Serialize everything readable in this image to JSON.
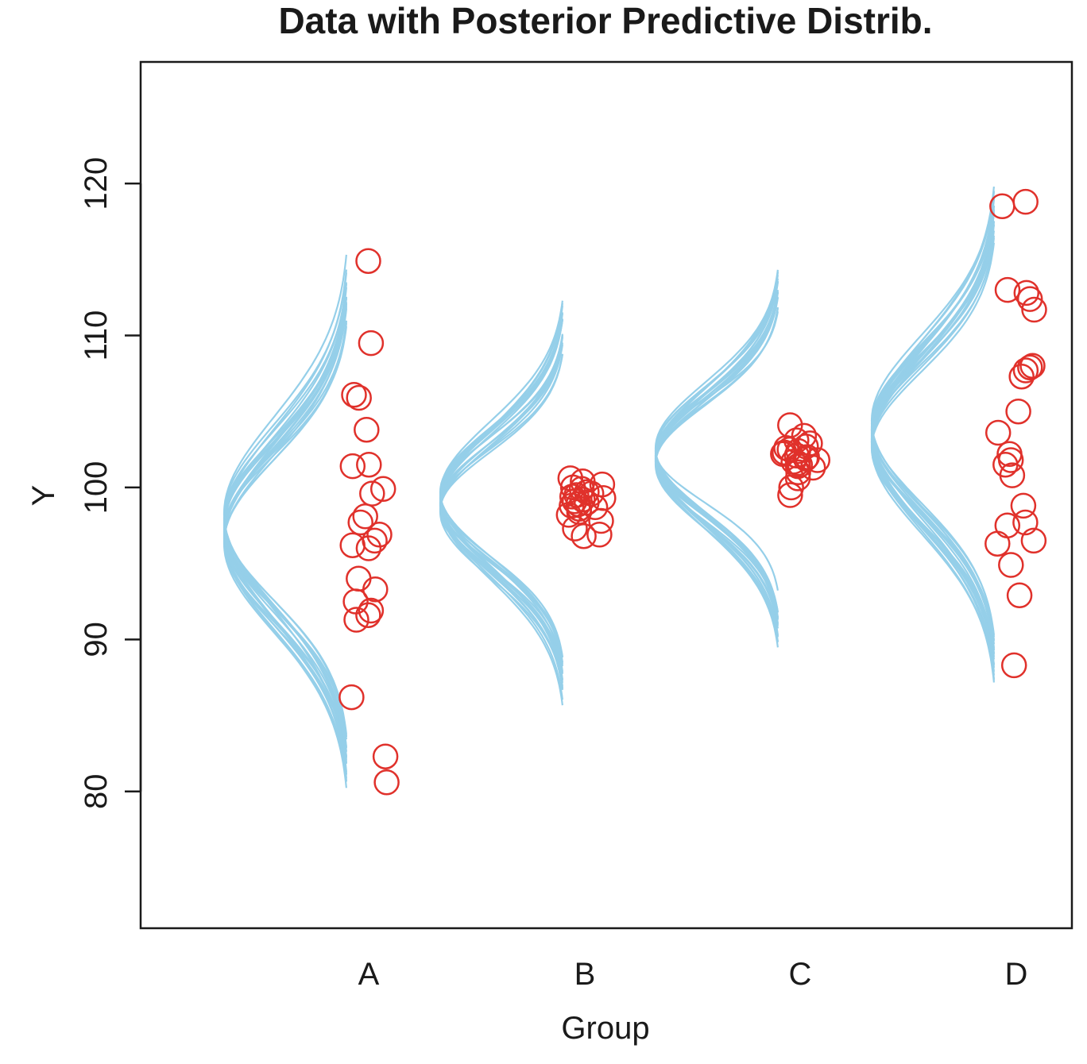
{
  "chart_data": {
    "type": "scatter",
    "title": "Data with Posterior Predictive Distrib.",
    "xlabel": "Group",
    "ylabel": "Y",
    "categories": [
      "A",
      "B",
      "C",
      "D"
    ],
    "ylim": [
      71,
      128
    ],
    "yticks": [
      80,
      90,
      100,
      110,
      120
    ],
    "grid": false,
    "legend": "none",
    "colors": {
      "points": "#e0312b",
      "curves": "#95cfe9",
      "axis": "#1a1a1a"
    },
    "points": [
      {
        "group": "A",
        "y": [
          114.9,
          109.5,
          106.1,
          105.9,
          103.8,
          101.5,
          101.4,
          99.9,
          99.6,
          98.1,
          97.7,
          96.9,
          96.5,
          96.2,
          96.0,
          94.0,
          93.3,
          92.5,
          91.9,
          91.6,
          91.3,
          86.2,
          82.3,
          80.6
        ]
      },
      {
        "group": "B",
        "y": [
          100.6,
          100.4,
          100.2,
          100.0,
          99.9,
          99.7,
          99.6,
          99.5,
          99.4,
          99.3,
          99.2,
          99.1,
          99.0,
          98.9,
          98.8,
          98.7,
          98.6,
          98.4,
          98.2,
          97.8,
          97.3,
          96.9,
          96.8
        ]
      },
      {
        "group": "C",
        "y": [
          104.1,
          103.4,
          103.1,
          102.9,
          102.7,
          102.6,
          102.5,
          102.4,
          102.3,
          102.2,
          102.1,
          102.0,
          101.9,
          101.8,
          101.7,
          101.6,
          101.5,
          101.4,
          101.3,
          101.0,
          100.6,
          100.0,
          99.5
        ]
      },
      {
        "group": "D",
        "y": [
          118.8,
          118.5,
          113.0,
          112.8,
          112.4,
          111.7,
          108.0,
          107.9,
          107.7,
          107.3,
          105.0,
          103.6,
          102.2,
          101.8,
          101.5,
          100.8,
          98.8,
          97.7,
          97.5,
          96.5,
          96.3,
          94.9,
          92.9,
          88.3
        ]
      }
    ],
    "posterior_predictive": [
      {
        "group": "A",
        "curves": [
          {
            "mu": 97.2,
            "sigma": 5.1
          },
          {
            "mu": 97.0,
            "sigma": 5.6
          },
          {
            "mu": 96.8,
            "sigma": 5.8
          },
          {
            "mu": 97.5,
            "sigma": 5.4
          },
          {
            "mu": 96.6,
            "sigma": 5.9
          },
          {
            "mu": 97.8,
            "sigma": 5.2
          },
          {
            "mu": 97.3,
            "sigma": 6.0
          },
          {
            "mu": 96.9,
            "sigma": 5.5
          },
          {
            "mu": 98.0,
            "sigma": 5.7
          },
          {
            "mu": 96.5,
            "sigma": 5.3
          },
          {
            "mu": 97.6,
            "sigma": 6.2
          },
          {
            "mu": 97.1,
            "sigma": 5.0
          },
          {
            "mu": 96.7,
            "sigma": 6.1
          },
          {
            "mu": 97.4,
            "sigma": 5.6
          },
          {
            "mu": 98.2,
            "sigma": 5.9
          },
          {
            "mu": 96.4,
            "sigma": 5.4
          },
          {
            "mu": 97.9,
            "sigma": 5.3
          },
          {
            "mu": 96.3,
            "sigma": 5.8
          },
          {
            "mu": 97.7,
            "sigma": 5.5
          },
          {
            "mu": 98.3,
            "sigma": 6.3
          }
        ]
      },
      {
        "group": "B",
        "curves": [
          {
            "mu": 99.0,
            "sigma": 3.9
          },
          {
            "mu": 98.7,
            "sigma": 4.2
          },
          {
            "mu": 99.3,
            "sigma": 4.0
          },
          {
            "mu": 98.9,
            "sigma": 4.5
          },
          {
            "mu": 99.5,
            "sigma": 4.3
          },
          {
            "mu": 98.5,
            "sigma": 3.8
          },
          {
            "mu": 99.1,
            "sigma": 4.6
          },
          {
            "mu": 98.8,
            "sigma": 4.1
          },
          {
            "mu": 99.4,
            "sigma": 3.9
          },
          {
            "mu": 99.2,
            "sigma": 4.4
          },
          {
            "mu": 98.6,
            "sigma": 4.0
          },
          {
            "mu": 99.6,
            "sigma": 4.7
          },
          {
            "mu": 98.4,
            "sigma": 4.3
          },
          {
            "mu": 99.0,
            "sigma": 4.8
          },
          {
            "mu": 99.7,
            "sigma": 4.2
          },
          {
            "mu": 98.8,
            "sigma": 3.7
          },
          {
            "mu": 99.3,
            "sigma": 4.5
          },
          {
            "mu": 98.9,
            "sigma": 4.9
          }
        ]
      },
      {
        "group": "C",
        "curves": [
          {
            "mu": 102.0,
            "sigma": 3.9
          },
          {
            "mu": 101.8,
            "sigma": 4.1
          },
          {
            "mu": 102.2,
            "sigma": 4.0
          },
          {
            "mu": 101.9,
            "sigma": 4.3
          },
          {
            "mu": 102.4,
            "sigma": 4.2
          },
          {
            "mu": 101.6,
            "sigma": 3.8
          },
          {
            "mu": 102.1,
            "sigma": 4.4
          },
          {
            "mu": 101.7,
            "sigma": 4.0
          },
          {
            "mu": 102.5,
            "sigma": 4.1
          },
          {
            "mu": 102.0,
            "sigma": 4.5
          },
          {
            "mu": 101.5,
            "sigma": 4.2
          },
          {
            "mu": 102.3,
            "sigma": 3.9
          },
          {
            "mu": 101.9,
            "sigma": 4.6
          },
          {
            "mu": 102.6,
            "sigma": 4.3
          },
          {
            "mu": 101.8,
            "sigma": 3.7
          },
          {
            "mu": 102.1,
            "sigma": 4.0
          },
          {
            "mu": 102.4,
            "sigma": 3.4
          },
          {
            "mu": 101.7,
            "sigma": 4.4
          }
        ]
      },
      {
        "group": "D",
        "curves": [
          {
            "mu": 103.2,
            "sigma": 4.9
          },
          {
            "mu": 103.5,
            "sigma": 5.2
          },
          {
            "mu": 102.9,
            "sigma": 5.4
          },
          {
            "mu": 103.8,
            "sigma": 5.0
          },
          {
            "mu": 103.0,
            "sigma": 5.6
          },
          {
            "mu": 104.0,
            "sigma": 5.3
          },
          {
            "mu": 103.3,
            "sigma": 5.8
          },
          {
            "mu": 102.8,
            "sigma": 5.1
          },
          {
            "mu": 103.7,
            "sigma": 5.5
          },
          {
            "mu": 103.1,
            "sigma": 5.9
          },
          {
            "mu": 104.2,
            "sigma": 5.2
          },
          {
            "mu": 103.4,
            "sigma": 5.0
          },
          {
            "mu": 102.7,
            "sigma": 5.7
          },
          {
            "mu": 103.9,
            "sigma": 5.4
          },
          {
            "mu": 103.6,
            "sigma": 6.0
          },
          {
            "mu": 103.0,
            "sigma": 5.3
          },
          {
            "mu": 104.4,
            "sigma": 5.6
          },
          {
            "mu": 103.2,
            "sigma": 5.5
          },
          {
            "mu": 102.6,
            "sigma": 5.0
          },
          {
            "mu": 103.8,
            "sigma": 5.8
          }
        ]
      }
    ]
  }
}
